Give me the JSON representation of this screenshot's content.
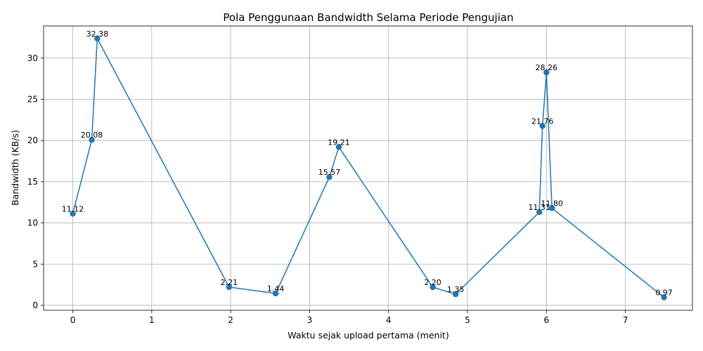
{
  "chart_data": {
    "type": "line",
    "title": "Pola Penggunaan Bandwidth Selama Periode Pengujian",
    "xlabel": "Waktu sejak upload pertama (menit)",
    "ylabel": "Bandwidth (KB/s)",
    "xlim": [
      -0.37,
      7.85
    ],
    "ylim": [
      -0.6,
      33.9
    ],
    "xticks": [
      0,
      1,
      2,
      3,
      4,
      5,
      6,
      7
    ],
    "yticks": [
      0,
      5,
      10,
      15,
      20,
      25,
      30
    ],
    "grid": true,
    "series": [
      {
        "color": "#1f77b4",
        "marker": "circle",
        "points": [
          {
            "x": 0.0,
            "y": 11.12,
            "label": "11.12"
          },
          {
            "x": 0.24,
            "y": 20.08,
            "label": "20.08"
          },
          {
            "x": 0.31,
            "y": 32.38,
            "label": "32.38"
          },
          {
            "x": 1.98,
            "y": 2.21,
            "label": "2.21"
          },
          {
            "x": 2.57,
            "y": 1.44,
            "label": "1.44"
          },
          {
            "x": 3.25,
            "y": 15.57,
            "label": "15.57"
          },
          {
            "x": 3.37,
            "y": 19.21,
            "label": "19.21"
          },
          {
            "x": 4.56,
            "y": 2.2,
            "label": "2.20"
          },
          {
            "x": 4.85,
            "y": 1.35,
            "label": "1.35"
          },
          {
            "x": 5.91,
            "y": 11.31,
            "label": "11.31"
          },
          {
            "x": 5.95,
            "y": 21.76,
            "label": "21.76"
          },
          {
            "x": 6.0,
            "y": 28.26,
            "label": "28.26"
          },
          {
            "x": 6.07,
            "y": 11.8,
            "label": "11.80"
          },
          {
            "x": 7.49,
            "y": 0.97,
            "label": "0.97"
          }
        ]
      }
    ]
  }
}
